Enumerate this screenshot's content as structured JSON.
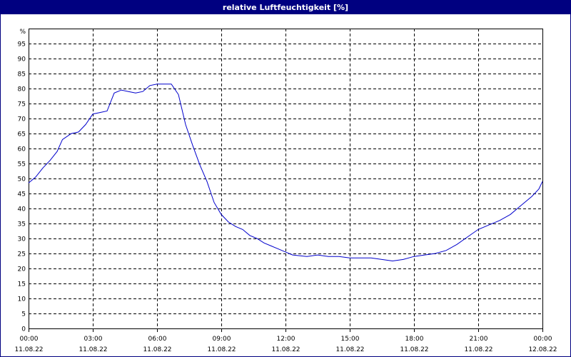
{
  "window": {
    "title": "relative Luftfeuchtigkeit [%]"
  },
  "chart_data": {
    "type": "line",
    "title": "relative Luftfeuchtigkeit [%]",
    "ylabel": "%",
    "xlabel": "",
    "ylim": [
      0,
      100
    ],
    "yticks": [
      0,
      5,
      10,
      15,
      20,
      25,
      30,
      35,
      40,
      45,
      50,
      55,
      60,
      65,
      70,
      75,
      80,
      85,
      90,
      95
    ],
    "xlim": [
      "11.08.22 00:00",
      "12.08.22 00:00"
    ],
    "xticks": [
      {
        "time": "00:00",
        "date": "11.08.22"
      },
      {
        "time": "03:00",
        "date": "11.08.22"
      },
      {
        "time": "06:00",
        "date": "11.08.22"
      },
      {
        "time": "09:00",
        "date": "11.08.22"
      },
      {
        "time": "12:00",
        "date": "11.08.22"
      },
      {
        "time": "15:00",
        "date": "11.08.22"
      },
      {
        "time": "18:00",
        "date": "11.08.22"
      },
      {
        "time": "21:00",
        "date": "11.08.22"
      },
      {
        "time": "00:00",
        "date": "12.08.22"
      }
    ],
    "grid": true,
    "series": [
      {
        "color": "#0000cc",
        "points": [
          [
            "11.08.22 00:00",
            48.5
          ],
          [
            "11.08.22 00:20",
            50.5
          ],
          [
            "11.08.22 00:40",
            53.5
          ],
          [
            "11.08.22 01:00",
            56
          ],
          [
            "11.08.22 01:20",
            59
          ],
          [
            "11.08.22 01:35",
            63
          ],
          [
            "11.08.22 02:00",
            65
          ],
          [
            "11.08.22 02:20",
            65.5
          ],
          [
            "11.08.22 02:40",
            68
          ],
          [
            "11.08.22 03:00",
            71.5
          ],
          [
            "11.08.22 03:20",
            72
          ],
          [
            "11.08.22 03:40",
            72.5
          ],
          [
            "11.08.22 04:00",
            78.5
          ],
          [
            "11.08.22 04:20",
            79.5
          ],
          [
            "11.08.22 04:40",
            79
          ],
          [
            "11.08.22 05:00",
            78.5
          ],
          [
            "11.08.22 05:20",
            79
          ],
          [
            "11.08.22 05:40",
            81
          ],
          [
            "11.08.22 06:00",
            81.5
          ],
          [
            "11.08.22 06:20",
            81.5
          ],
          [
            "11.08.22 06:40",
            81.5
          ],
          [
            "11.08.22 07:00",
            78
          ],
          [
            "11.08.22 07:20",
            68
          ],
          [
            "11.08.22 07:40",
            61
          ],
          [
            "11.08.22 08:00",
            54.5
          ],
          [
            "11.08.22 08:20",
            49
          ],
          [
            "11.08.22 08:40",
            42
          ],
          [
            "11.08.22 09:00",
            38
          ],
          [
            "11.08.22 09:20",
            35.5
          ],
          [
            "11.08.22 09:40",
            34
          ],
          [
            "11.08.22 10:00",
            33
          ],
          [
            "11.08.22 10:20",
            31
          ],
          [
            "11.08.22 10:40",
            30
          ],
          [
            "11.08.22 11:00",
            28.5
          ],
          [
            "11.08.22 11:20",
            27.5
          ],
          [
            "11.08.22 11:40",
            26.5
          ],
          [
            "11.08.22 12:00",
            25.5
          ],
          [
            "11.08.22 12:20",
            24.5
          ],
          [
            "11.08.22 13:00",
            24
          ],
          [
            "11.08.22 13:30",
            24.5
          ],
          [
            "11.08.22 14:00",
            24
          ],
          [
            "11.08.22 14:30",
            24
          ],
          [
            "11.08.22 15:00",
            23.5
          ],
          [
            "11.08.22 15:30",
            23.5
          ],
          [
            "11.08.22 16:00",
            23.5
          ],
          [
            "11.08.22 16:30",
            23
          ],
          [
            "11.08.22 17:00",
            22.5
          ],
          [
            "11.08.22 17:30",
            23
          ],
          [
            "11.08.22 18:00",
            24
          ],
          [
            "11.08.22 18:30",
            24.5
          ],
          [
            "11.08.22 19:00",
            25
          ],
          [
            "11.08.22 19:30",
            26
          ],
          [
            "11.08.22 20:00",
            28
          ],
          [
            "11.08.22 20:30",
            30.5
          ],
          [
            "11.08.22 21:00",
            33
          ],
          [
            "11.08.22 21:30",
            34.5
          ],
          [
            "11.08.22 22:00",
            36
          ],
          [
            "11.08.22 22:30",
            38
          ],
          [
            "11.08.22 23:00",
            41
          ],
          [
            "11.08.22 23:30",
            44
          ],
          [
            "11.08.22 23:50",
            46.5
          ],
          [
            "12.08.22 00:00",
            49
          ]
        ]
      }
    ]
  }
}
